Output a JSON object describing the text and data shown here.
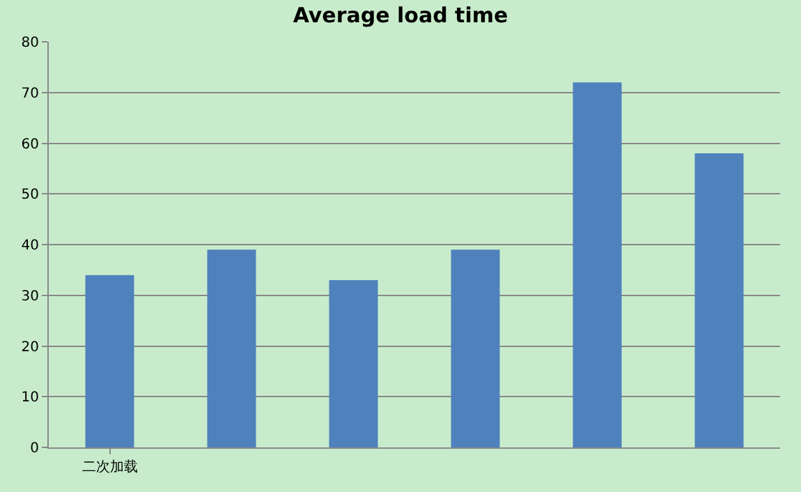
{
  "chart_data": {
    "type": "bar",
    "title": "Average load time",
    "categories": [
      "二次加载",
      null,
      null,
      null,
      null,
      null
    ],
    "values": [
      34,
      39,
      33,
      39,
      72,
      58
    ],
    "color": "#4f81bd",
    "ylim": [
      0,
      80
    ],
    "yticks": [
      0,
      10,
      20,
      30,
      40,
      50,
      60,
      70,
      80
    ],
    "grid": "y",
    "legend": false
  }
}
